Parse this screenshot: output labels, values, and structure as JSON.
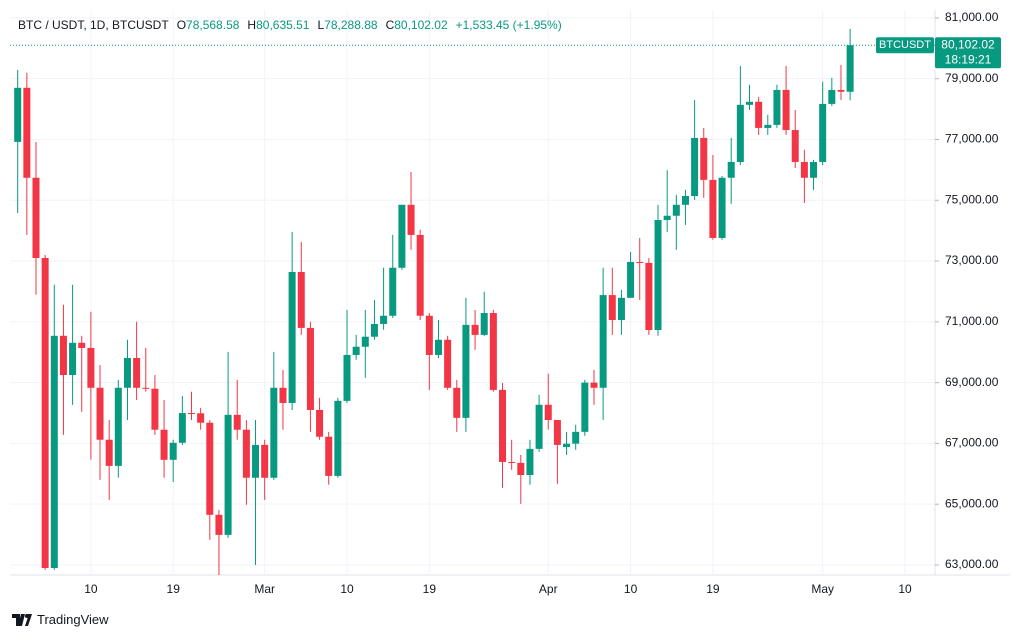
{
  "header": {
    "symbol": "BTC / USDT, 1D, BTCUSDT",
    "ohlc": [
      {
        "label": "O",
        "value": "78,568.58"
      },
      {
        "label": "H",
        "value": "80,635.51"
      },
      {
        "label": "L",
        "value": "78,288.88"
      },
      {
        "label": "C",
        "value": "80,102.02"
      }
    ],
    "change": "+1,533.45 (+1.95%)"
  },
  "chart_data": {
    "type": "candlestick",
    "categories": [
      null,
      null,
      null,
      null,
      null,
      null,
      null,
      null,
      "10",
      null,
      null,
      null,
      null,
      null,
      null,
      null,
      null,
      "19",
      null,
      null,
      null,
      null,
      null,
      null,
      null,
      null,
      null,
      "Mar",
      null,
      null,
      null,
      null,
      null,
      null,
      null,
      null,
      "10",
      null,
      null,
      null,
      null,
      null,
      null,
      null,
      null,
      "19",
      null,
      null,
      null,
      null,
      null,
      null,
      null,
      null,
      null,
      null,
      null,
      null,
      "Apr",
      null,
      null,
      null,
      null,
      null,
      null,
      null,
      null,
      "10",
      null,
      null,
      null,
      null,
      null,
      null,
      null,
      null,
      "19",
      null,
      null,
      null,
      null,
      null,
      null,
      null,
      null,
      null,
      null,
      null,
      "May",
      null,
      null,
      null,
      null,
      null,
      null,
      null,
      null,
      "10"
    ],
    "open": [
      76920,
      78700,
      75740,
      73100,
      62900,
      70540,
      69250,
      70310,
      70140,
      68830,
      67120,
      66260,
      68830,
      69810,
      68830,
      68800,
      67450,
      66460,
      67020,
      68000,
      67990,
      67680,
      64650,
      63990,
      67940,
      67450,
      65870,
      66950,
      65870,
      68830,
      68330,
      72640,
      70800,
      68100,
      67220,
      65930,
      68400,
      69910,
      70180,
      70510,
      70930,
      71200,
      72780,
      74850,
      73860,
      71200,
      69910,
      70410,
      68830,
      67840,
      70900,
      70570,
      71290,
      68760,
      66390,
      66360,
      65960,
      66820,
      68270,
      67770,
      66880,
      66990,
      67380,
      69000,
      68830,
      71880,
      71060,
      71790,
      72970,
      72940,
      70730,
      74350,
      74490,
      74850,
      75140,
      77050,
      75670,
      73760,
      75740,
      76260,
      78140,
      78240,
      77380,
      77480,
      78630,
      77310,
      76260,
      75740,
      76260,
      78170,
      78630,
      78568.58,
      null,
      null,
      null,
      null,
      null,
      null
    ],
    "high": [
      79290,
      79190,
      76920,
      73200,
      72220,
      71560,
      72220,
      70540,
      71330,
      69580,
      67770,
      69090,
      70410,
      71000,
      70140,
      69250,
      68430,
      67120,
      68560,
      68700,
      68170,
      67770,
      64810,
      70010,
      69090,
      67770,
      67770,
      67120,
      70010,
      69420,
      73960,
      73630,
      71000,
      68500,
      67380,
      68500,
      71390,
      70570,
      71390,
      71720,
      72780,
      73860,
      74850,
      75930,
      74030,
      71290,
      71060,
      70540,
      69090,
      71790,
      71390,
      71990,
      71390,
      68990,
      67120,
      66620,
      67120,
      68600,
      69290,
      67770,
      67380,
      67610,
      69090,
      69420,
      72780,
      72780,
      72050,
      73300,
      73760,
      73100,
      74850,
      75990,
      75180,
      75340,
      78300,
      77380,
      76490,
      75800,
      77050,
      79420,
      78800,
      78400,
      77810,
      78800,
      79420,
      77970,
      76660,
      76330,
      78900,
      79030,
      79450,
      80635.51,
      null,
      null,
      null,
      null,
      null,
      null
    ],
    "low": [
      74580,
      73860,
      71890,
      62840,
      62840,
      67280,
      68270,
      68040,
      66460,
      65800,
      65140,
      65870,
      67770,
      68430,
      68700,
      67280,
      65870,
      65730,
      66950,
      67770,
      67450,
      63830,
      62670,
      63890,
      67120,
      64980,
      63000,
      65140,
      65800,
      67450,
      68100,
      70570,
      67380,
      67120,
      65640,
      65870,
      68330,
      69750,
      69160,
      70410,
      70740,
      71130,
      72710,
      73370,
      71060,
      68760,
      69810,
      68760,
      67380,
      67380,
      70080,
      70540,
      68700,
      65540,
      66130,
      65010,
      65640,
      66720,
      67450,
      65670,
      66620,
      66790,
      67250,
      68270,
      67770,
      70570,
      70570,
      71790,
      71720,
      70570,
      70540,
      73960,
      73370,
      74190,
      75010,
      75080,
      73700,
      73700,
      74880,
      76160,
      77970,
      77150,
      77150,
      77380,
      77150,
      76060,
      74910,
      75340,
      76160,
      78100,
      78300,
      78288.88,
      null,
      null,
      null,
      null,
      null,
      null
    ],
    "close": [
      78700,
      75740,
      73100,
      62900,
      70540,
      69250,
      70310,
      70140,
      68830,
      67120,
      66260,
      68830,
      69810,
      68830,
      68800,
      67450,
      66460,
      67020,
      68000,
      67990,
      67680,
      64650,
      63990,
      67940,
      67450,
      65870,
      66950,
      65870,
      68830,
      68330,
      72640,
      70800,
      68100,
      67220,
      65930,
      68400,
      69910,
      70180,
      70510,
      70930,
      71200,
      72780,
      74850,
      73860,
      71200,
      69910,
      70410,
      68830,
      67840,
      70900,
      70570,
      71290,
      68760,
      66390,
      66360,
      65960,
      66820,
      68270,
      67770,
      66950,
      66990,
      67380,
      69000,
      68830,
      71880,
      71060,
      71790,
      72970,
      72940,
      70730,
      74350,
      74490,
      74850,
      75140,
      77050,
      75670,
      73760,
      75740,
      76260,
      78140,
      78240,
      77380,
      77480,
      78630,
      77310,
      76260,
      75740,
      76260,
      78170,
      78630,
      78570,
      80102.02,
      null,
      null,
      null,
      null,
      null,
      null
    ],
    "up_color": "#089981",
    "down_color": "#f23645",
    "ylim": [
      62670,
      81260
    ],
    "yticks": [
      {
        "value": 63000,
        "label": "63,000.00"
      },
      {
        "value": 65000,
        "label": "65,000.00"
      },
      {
        "value": 67000,
        "label": "67,000.00"
      },
      {
        "value": 69000,
        "label": "69,000.00"
      },
      {
        "value": 71000,
        "label": "71,000.00"
      },
      {
        "value": 73000,
        "label": "73,000.00"
      },
      {
        "value": 75000,
        "label": "75,000.00"
      },
      {
        "value": 77000,
        "label": "77,000.00"
      },
      {
        "value": 79000,
        "label": "79,000.00"
      },
      {
        "value": 81000,
        "label": "81,000.00"
      }
    ],
    "grid": true,
    "last_price": {
      "symbol": "BTCUSDT",
      "price": "80,102.02",
      "countdown": "18:19:21"
    }
  },
  "footer": {
    "brand": "TradingView"
  }
}
